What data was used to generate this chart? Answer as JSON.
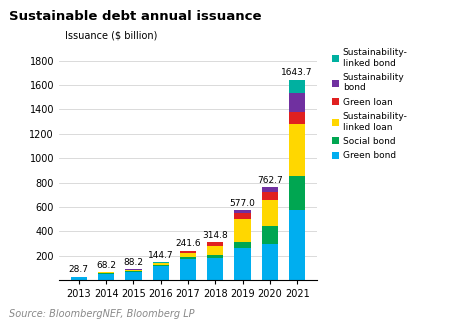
{
  "title": "Sustainable debt annual issuance",
  "ylabel": "Issuance ($ billion)",
  "source": "Source: BloombergNEF, Bloomberg LP",
  "years": [
    "2013",
    "2014",
    "2015",
    "2016",
    "2017",
    "2018",
    "2019",
    "2020",
    "2021"
  ],
  "totals": [
    28.7,
    68.2,
    88.2,
    144.7,
    241.6,
    314.8,
    577.0,
    762.7,
    1643.7
  ],
  "segments": {
    "Green bond": [
      26.0,
      52.0,
      67.0,
      115.0,
      170.0,
      180.0,
      260.0,
      295.0,
      572.0
    ],
    "Social bond": [
      0.5,
      4.5,
      6.0,
      8.0,
      18.0,
      28.0,
      52.0,
      148.0,
      280.0
    ],
    "Sustainability-linked loan": [
      1.5,
      7.0,
      9.5,
      14.0,
      38.0,
      75.0,
      185.0,
      215.0,
      430.0
    ],
    "Green loan": [
      0.5,
      2.5,
      4.0,
      6.0,
      12.0,
      28.0,
      55.0,
      65.0,
      98.0
    ],
    "Sustainability bond": [
      0.2,
      2.0,
      1.5,
      1.5,
      3.0,
      3.5,
      22.0,
      37.0,
      150.0
    ],
    "Sustainability-linked bond": [
      0.0,
      0.2,
      0.2,
      0.2,
      0.6,
      0.3,
      3.0,
      2.7,
      113.7
    ]
  },
  "colors": {
    "Green bond": "#00AEEF",
    "Social bond": "#00A651",
    "Sustainability-linked loan": "#FFD700",
    "Green loan": "#E02020",
    "Sustainability bond": "#7030A0",
    "Sustainability-linked bond": "#00B0A0"
  },
  "ylim": [
    0,
    1900
  ],
  "yticks": [
    0,
    200,
    400,
    600,
    800,
    1000,
    1200,
    1400,
    1600,
    1800
  ],
  "background_color": "#FFFFFF",
  "title_fontsize": 9.5,
  "label_fontsize": 7,
  "tick_fontsize": 7,
  "legend_fontsize": 6.5,
  "source_fontsize": 7
}
